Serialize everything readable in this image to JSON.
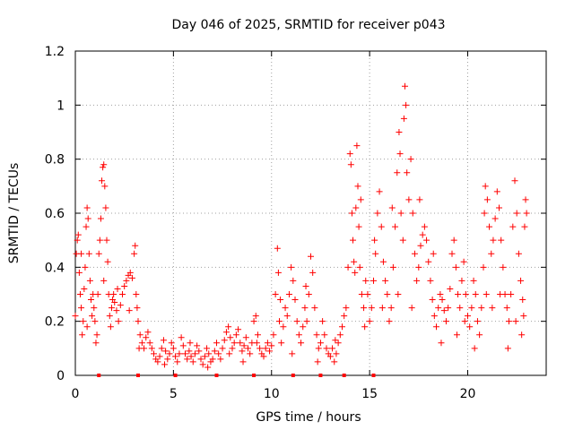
{
  "chart_data": {
    "type": "scatter",
    "title": "Day 046 of 2025, SRMTID for receiver p043",
    "xlabel": "GPS time / hours",
    "ylabel": "SRMTID / TECUs",
    "xlim": [
      0,
      24
    ],
    "ylim": [
      0,
      1.2
    ],
    "xticks": [
      0,
      5,
      10,
      15,
      20
    ],
    "yticks": [
      0,
      0.2,
      0.4,
      0.6,
      0.8,
      1,
      1.2
    ],
    "xtick_labels": [
      "0",
      "5",
      "10",
      "15",
      "20"
    ],
    "ytick_labels": [
      "0",
      "0.2",
      "0.4",
      "0.6",
      "0.8",
      "1",
      "1.2"
    ],
    "grid": true,
    "marker": "plus",
    "color": "#ff0000",
    "series": [
      {
        "name": "SRMTID",
        "points": [
          [
            0.0,
            0.22
          ],
          [
            0.05,
            0.45
          ],
          [
            0.1,
            0.5
          ],
          [
            0.15,
            0.52
          ],
          [
            0.2,
            0.38
          ],
          [
            0.25,
            0.3
          ],
          [
            0.3,
            0.25
          ],
          [
            0.35,
            0.15
          ],
          [
            0.4,
            0.2
          ],
          [
            0.45,
            0.32
          ],
          [
            0.5,
            0.4
          ],
          [
            0.55,
            0.55
          ],
          [
            0.6,
            0.62
          ],
          [
            0.65,
            0.58
          ],
          [
            0.7,
            0.45
          ],
          [
            0.75,
            0.35
          ],
          [
            0.8,
            0.28
          ],
          [
            0.85,
            0.22
          ],
          [
            0.9,
            0.3
          ],
          [
            0.95,
            0.25
          ],
          [
            1.0,
            0.2
          ],
          [
            1.05,
            0.12
          ],
          [
            1.1,
            0.15
          ],
          [
            1.15,
            0.3
          ],
          [
            1.2,
            0.45
          ],
          [
            1.25,
            0.5
          ],
          [
            1.3,
            0.58
          ],
          [
            1.35,
            0.72
          ],
          [
            1.4,
            0.77
          ],
          [
            1.45,
            0.78
          ],
          [
            1.5,
            0.7
          ],
          [
            1.55,
            0.62
          ],
          [
            1.6,
            0.5
          ],
          [
            1.65,
            0.42
          ],
          [
            1.7,
            0.3
          ],
          [
            1.75,
            0.22
          ],
          [
            1.8,
            0.18
          ],
          [
            1.85,
            0.25
          ],
          [
            1.9,
            0.28
          ],
          [
            1.95,
            0.3
          ],
          [
            2.0,
            0.27
          ],
          [
            2.1,
            0.24
          ],
          [
            2.2,
            0.2
          ],
          [
            2.3,
            0.26
          ],
          [
            2.4,
            0.3
          ],
          [
            2.5,
            0.33
          ],
          [
            2.6,
            0.35
          ],
          [
            2.7,
            0.37
          ],
          [
            2.8,
            0.38
          ],
          [
            2.9,
            0.36
          ],
          [
            3.0,
            0.45
          ],
          [
            3.05,
            0.48
          ],
          [
            3.1,
            0.3
          ],
          [
            3.15,
            0.25
          ],
          [
            3.2,
            0.2
          ],
          [
            3.3,
            0.15
          ],
          [
            3.4,
            0.12
          ],
          [
            3.5,
            0.1
          ],
          [
            3.6,
            0.14
          ],
          [
            3.7,
            0.16
          ],
          [
            3.8,
            0.12
          ],
          [
            3.9,
            0.1
          ],
          [
            4.0,
            0.08
          ],
          [
            4.1,
            0.06
          ],
          [
            4.2,
            0.05
          ],
          [
            4.3,
            0.07
          ],
          [
            4.4,
            0.1
          ],
          [
            4.5,
            0.13
          ],
          [
            4.6,
            0.09
          ],
          [
            4.7,
            0.06
          ],
          [
            4.8,
            0.08
          ],
          [
            4.9,
            0.12
          ],
          [
            5.0,
            0.1
          ],
          [
            5.1,
            0.07
          ],
          [
            5.2,
            0.05
          ],
          [
            5.3,
            0.08
          ],
          [
            5.4,
            0.14
          ],
          [
            5.5,
            0.11
          ],
          [
            5.6,
            0.08
          ],
          [
            5.7,
            0.06
          ],
          [
            5.8,
            0.09
          ],
          [
            5.9,
            0.07
          ],
          [
            6.0,
            0.05
          ],
          [
            6.1,
            0.08
          ],
          [
            6.2,
            0.11
          ],
          [
            6.3,
            0.09
          ],
          [
            6.4,
            0.06
          ],
          [
            6.5,
            0.04
          ],
          [
            6.6,
            0.07
          ],
          [
            6.7,
            0.1
          ],
          [
            6.8,
            0.08
          ],
          [
            6.9,
            0.05
          ],
          [
            7.0,
            0.06
          ],
          [
            7.1,
            0.09
          ],
          [
            7.2,
            0.12
          ],
          [
            7.3,
            0.08
          ],
          [
            7.4,
            0.06
          ],
          [
            7.5,
            0.1
          ],
          [
            7.6,
            0.13
          ],
          [
            7.7,
            0.16
          ],
          [
            7.8,
            0.18
          ],
          [
            7.9,
            0.14
          ],
          [
            8.0,
            0.1
          ],
          [
            8.1,
            0.12
          ],
          [
            8.2,
            0.15
          ],
          [
            8.3,
            0.17
          ],
          [
            8.4,
            0.12
          ],
          [
            8.5,
            0.09
          ],
          [
            8.6,
            0.11
          ],
          [
            8.7,
            0.14
          ],
          [
            8.8,
            0.1
          ],
          [
            8.9,
            0.08
          ],
          [
            9.0,
            0.12
          ],
          [
            9.1,
            0.2
          ],
          [
            9.2,
            0.22
          ],
          [
            9.3,
            0.15
          ],
          [
            9.4,
            0.1
          ],
          [
            9.5,
            0.08
          ],
          [
            9.6,
            0.07
          ],
          [
            9.7,
            0.1
          ],
          [
            9.8,
            0.12
          ],
          [
            9.9,
            0.09
          ],
          [
            10.0,
            0.11
          ],
          [
            10.1,
            0.15
          ],
          [
            10.2,
            0.3
          ],
          [
            10.3,
            0.47
          ],
          [
            10.35,
            0.38
          ],
          [
            10.4,
            0.2
          ],
          [
            10.5,
            0.12
          ],
          [
            10.6,
            0.18
          ],
          [
            10.7,
            0.25
          ],
          [
            10.8,
            0.22
          ],
          [
            10.9,
            0.3
          ],
          [
            11.0,
            0.4
          ],
          [
            11.1,
            0.35
          ],
          [
            11.2,
            0.28
          ],
          [
            11.3,
            0.2
          ],
          [
            11.4,
            0.15
          ],
          [
            11.5,
            0.12
          ],
          [
            11.6,
            0.18
          ],
          [
            11.7,
            0.25
          ],
          [
            11.8,
            0.2
          ],
          [
            11.9,
            0.3
          ],
          [
            12.0,
            0.44
          ],
          [
            12.1,
            0.38
          ],
          [
            12.2,
            0.25
          ],
          [
            12.3,
            0.15
          ],
          [
            12.4,
            0.1
          ],
          [
            12.5,
            0.12
          ],
          [
            12.6,
            0.2
          ],
          [
            12.7,
            0.15
          ],
          [
            12.8,
            0.1
          ],
          [
            12.9,
            0.08
          ],
          [
            13.0,
            0.07
          ],
          [
            13.1,
            0.1
          ],
          [
            13.2,
            0.05
          ],
          [
            13.3,
            0.08
          ],
          [
            13.4,
            0.12
          ],
          [
            13.5,
            0.15
          ],
          [
            13.6,
            0.18
          ],
          [
            13.7,
            0.22
          ],
          [
            13.8,
            0.25
          ],
          [
            13.9,
            0.4
          ],
          [
            14.0,
            0.82
          ],
          [
            14.05,
            0.78
          ],
          [
            14.1,
            0.6
          ],
          [
            14.15,
            0.5
          ],
          [
            14.2,
            0.42
          ],
          [
            14.25,
            0.38
          ],
          [
            14.3,
            0.62
          ],
          [
            14.35,
            0.85
          ],
          [
            14.4,
            0.7
          ],
          [
            14.45,
            0.55
          ],
          [
            14.5,
            0.4
          ],
          [
            14.6,
            0.3
          ],
          [
            14.7,
            0.25
          ],
          [
            14.8,
            0.35
          ],
          [
            14.9,
            0.3
          ],
          [
            15.0,
            0.2
          ],
          [
            15.1,
            0.25
          ],
          [
            15.2,
            0.35
          ],
          [
            15.3,
            0.45
          ],
          [
            15.4,
            0.6
          ],
          [
            15.5,
            0.68
          ],
          [
            15.6,
            0.55
          ],
          [
            15.7,
            0.42
          ],
          [
            15.8,
            0.35
          ],
          [
            15.9,
            0.3
          ],
          [
            16.0,
            0.2
          ],
          [
            16.1,
            0.25
          ],
          [
            16.2,
            0.4
          ],
          [
            16.3,
            0.55
          ],
          [
            16.4,
            0.75
          ],
          [
            16.5,
            0.9
          ],
          [
            16.55,
            0.82
          ],
          [
            16.6,
            0.6
          ],
          [
            16.7,
            0.5
          ],
          [
            16.75,
            0.95
          ],
          [
            16.8,
            1.07
          ],
          [
            16.85,
            1.0
          ],
          [
            16.9,
            0.75
          ],
          [
            17.0,
            0.65
          ],
          [
            17.1,
            0.8
          ],
          [
            17.2,
            0.6
          ],
          [
            17.3,
            0.45
          ],
          [
            17.4,
            0.35
          ],
          [
            17.5,
            0.4
          ],
          [
            17.6,
            0.48
          ],
          [
            17.7,
            0.52
          ],
          [
            17.8,
            0.55
          ],
          [
            17.9,
            0.5
          ],
          [
            18.0,
            0.42
          ],
          [
            18.1,
            0.35
          ],
          [
            18.2,
            0.28
          ],
          [
            18.3,
            0.22
          ],
          [
            18.4,
            0.18
          ],
          [
            18.5,
            0.25
          ],
          [
            18.6,
            0.3
          ],
          [
            18.7,
            0.28
          ],
          [
            18.8,
            0.24
          ],
          [
            18.9,
            0.2
          ],
          [
            19.0,
            0.25
          ],
          [
            19.1,
            0.32
          ],
          [
            19.2,
            0.45
          ],
          [
            19.3,
            0.5
          ],
          [
            19.4,
            0.4
          ],
          [
            19.5,
            0.3
          ],
          [
            19.6,
            0.25
          ],
          [
            19.7,
            0.35
          ],
          [
            19.8,
            0.42
          ],
          [
            19.9,
            0.3
          ],
          [
            20.0,
            0.22
          ],
          [
            20.1,
            0.18
          ],
          [
            20.2,
            0.25
          ],
          [
            20.3,
            0.35
          ],
          [
            20.4,
            0.3
          ],
          [
            20.5,
            0.2
          ],
          [
            20.6,
            0.15
          ],
          [
            20.7,
            0.25
          ],
          [
            20.8,
            0.4
          ],
          [
            20.85,
            0.6
          ],
          [
            20.9,
            0.7
          ],
          [
            21.0,
            0.65
          ],
          [
            21.1,
            0.55
          ],
          [
            21.2,
            0.45
          ],
          [
            21.3,
            0.5
          ],
          [
            21.4,
            0.58
          ],
          [
            21.5,
            0.68
          ],
          [
            21.6,
            0.62
          ],
          [
            21.7,
            0.5
          ],
          [
            21.8,
            0.4
          ],
          [
            21.9,
            0.3
          ],
          [
            22.0,
            0.25
          ],
          [
            22.1,
            0.2
          ],
          [
            22.2,
            0.3
          ],
          [
            22.3,
            0.55
          ],
          [
            22.4,
            0.72
          ],
          [
            22.5,
            0.6
          ],
          [
            22.6,
            0.45
          ],
          [
            22.7,
            0.35
          ],
          [
            22.8,
            0.28
          ],
          [
            22.85,
            0.22
          ],
          [
            22.9,
            0.55
          ],
          [
            22.95,
            0.65
          ],
          [
            23.0,
            0.6
          ],
          [
            0.3,
            0.45
          ],
          [
            0.6,
            0.18
          ],
          [
            1.45,
            0.35
          ],
          [
            2.15,
            0.32
          ],
          [
            2.75,
            0.24
          ],
          [
            3.25,
            0.1
          ],
          [
            4.55,
            0.04
          ],
          [
            5.85,
            0.12
          ],
          [
            6.75,
            0.03
          ],
          [
            7.85,
            0.08
          ],
          [
            8.55,
            0.05
          ],
          [
            9.25,
            0.12
          ],
          [
            10.45,
            0.28
          ],
          [
            11.05,
            0.08
          ],
          [
            11.75,
            0.33
          ],
          [
            12.35,
            0.05
          ],
          [
            13.25,
            0.13
          ],
          [
            14.55,
            0.65
          ],
          [
            14.75,
            0.18
          ],
          [
            15.25,
            0.5
          ],
          [
            15.65,
            0.25
          ],
          [
            16.15,
            0.62
          ],
          [
            16.45,
            0.3
          ],
          [
            17.15,
            0.25
          ],
          [
            17.55,
            0.65
          ],
          [
            18.25,
            0.45
          ],
          [
            18.65,
            0.12
          ],
          [
            19.45,
            0.15
          ],
          [
            19.85,
            0.2
          ],
          [
            20.35,
            0.1
          ],
          [
            20.95,
            0.3
          ],
          [
            21.25,
            0.25
          ],
          [
            21.65,
            0.3
          ],
          [
            22.05,
            0.1
          ],
          [
            22.45,
            0.2
          ],
          [
            22.75,
            0.15
          ]
        ]
      }
    ],
    "markers_at_zero": [
      1.2,
      3.2,
      5.1,
      7.2,
      9.1,
      11.1,
      12.5,
      13.7,
      15.2
    ]
  }
}
